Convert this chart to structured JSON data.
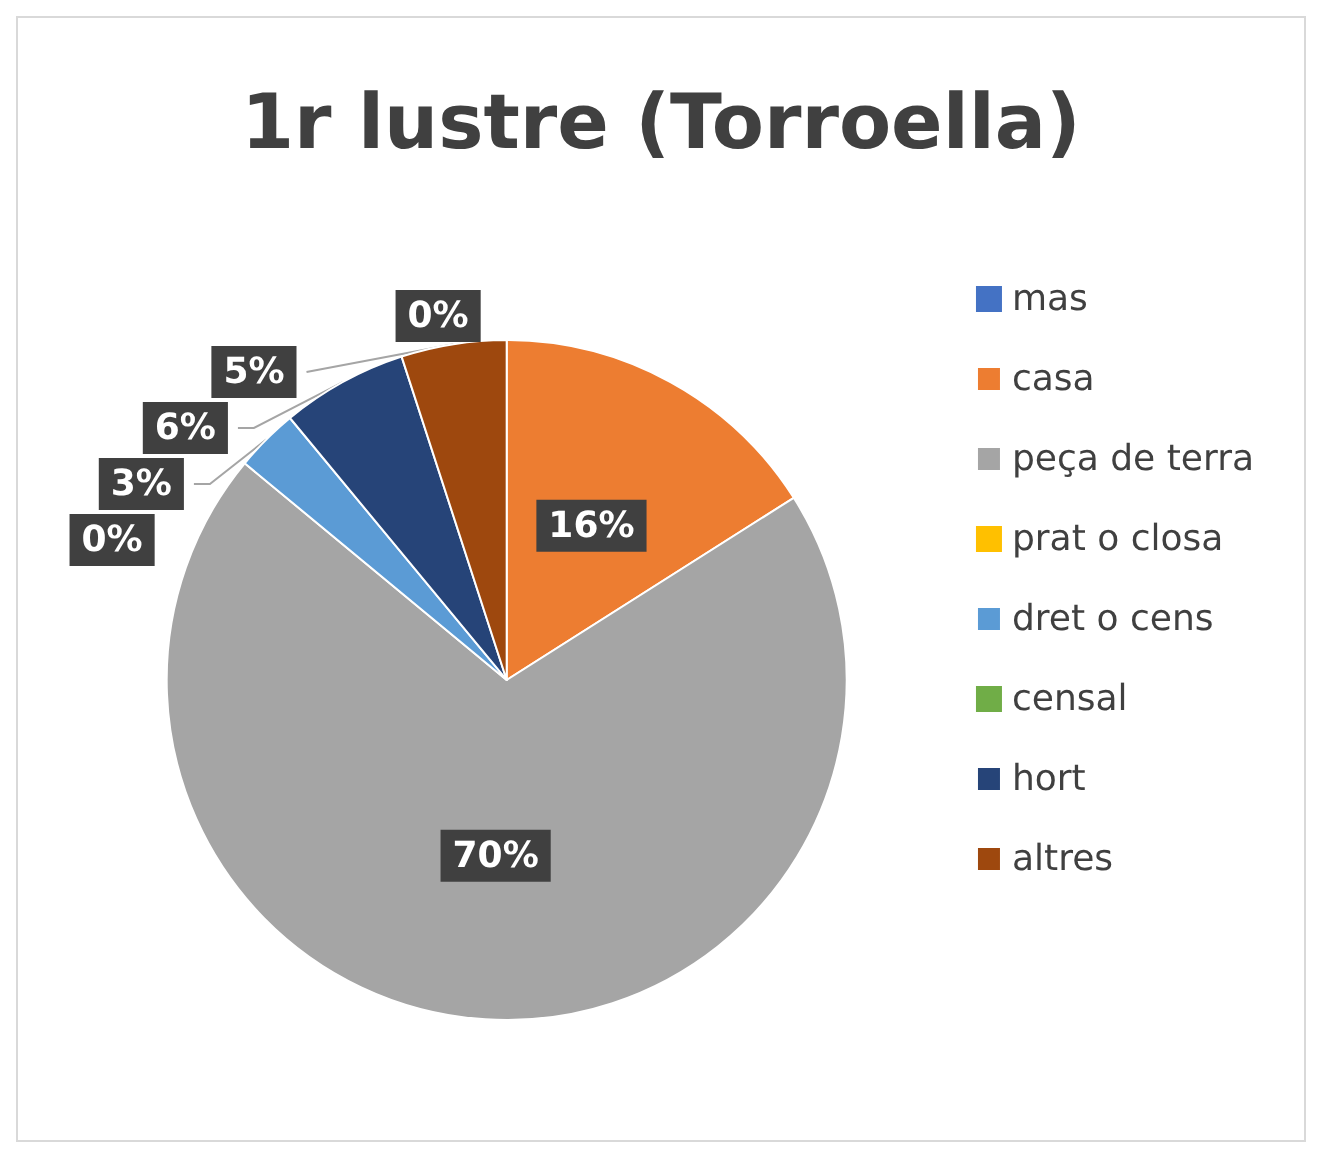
{
  "chart_data": {
    "type": "pie",
    "title": "1r lustre (Torroella)",
    "categories": [
      "mas",
      "casa",
      "peça de terra",
      "prat o closa",
      "dret o cens",
      "censal",
      "hort",
      "altres"
    ],
    "values": [
      0,
      16,
      70,
      0,
      3,
      0,
      6,
      5
    ],
    "colors": [
      "#4472c4",
      "#ed7d31",
      "#a5a5a5",
      "#ffc000",
      "#5b9bd5",
      "#70ad47",
      "#264478",
      "#9e480e"
    ],
    "value_labels": [
      "0%",
      "16%",
      "70%",
      "0%",
      "3%",
      null,
      "6%",
      "5%"
    ],
    "legend": "right"
  }
}
